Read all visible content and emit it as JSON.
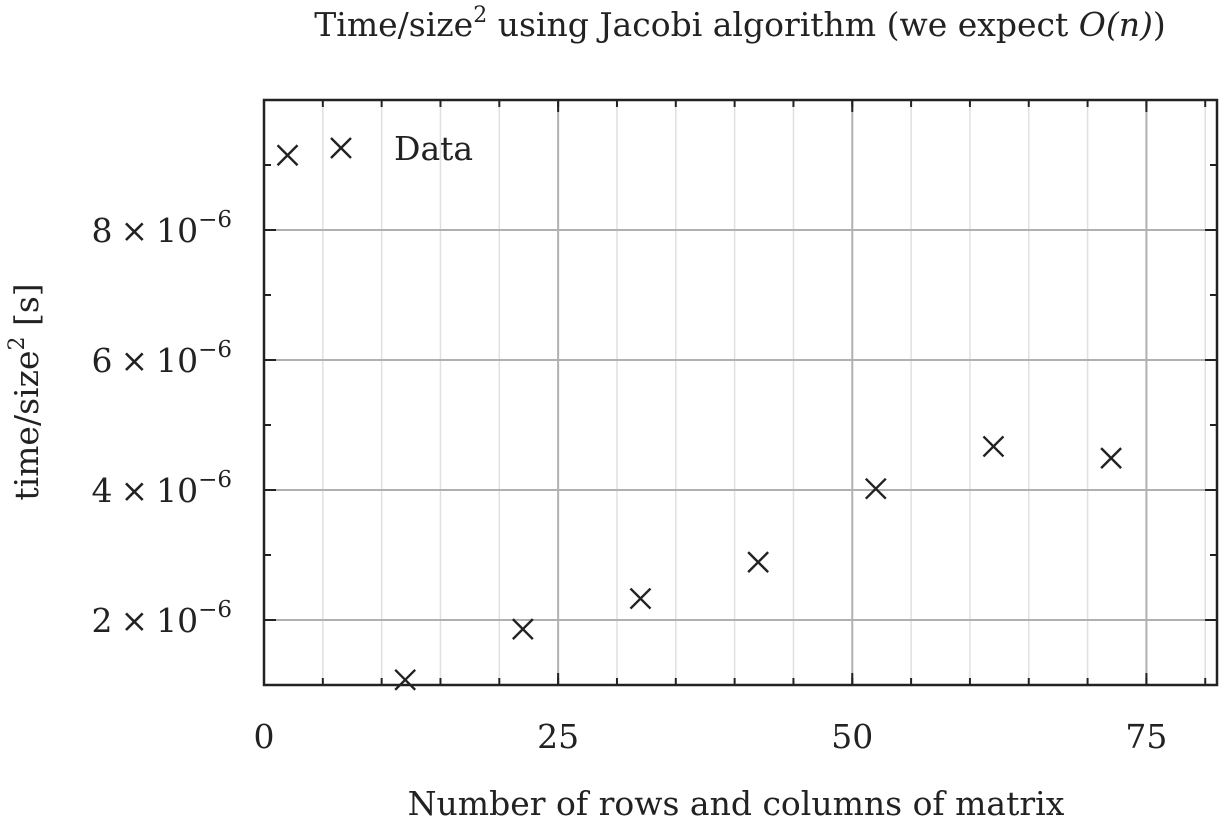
{
  "chart_data": {
    "type": "scatter",
    "title_main": "Time/size",
    "title_sup": "2",
    "title_rest": " using Jacobi algorithm (we expect ",
    "title_math": "O(n)",
    "title_end": ")",
    "xlabel": "Number of rows and columns of matrix",
    "ylabel_main": "time/size",
    "ylabel_sup": "2",
    "ylabel_rest": " [s]",
    "xlim": [
      0,
      81
    ],
    "ylim": [
      1e-06,
      1e-05
    ],
    "x_ticks": [
      {
        "value": 0,
        "label": "0"
      },
      {
        "value": 25,
        "label": "25"
      },
      {
        "value": 50,
        "label": "50"
      },
      {
        "value": 75,
        "label": "75"
      }
    ],
    "x_minor_step": 5,
    "y_ticks": [
      {
        "value": 2e-06,
        "mantissa": "2",
        "times": "×",
        "base": "10",
        "exp": "−6"
      },
      {
        "value": 4e-06,
        "mantissa": "4",
        "times": "×",
        "base": "10",
        "exp": "−6"
      },
      {
        "value": 6e-06,
        "mantissa": "6",
        "times": "×",
        "base": "10",
        "exp": "−6"
      },
      {
        "value": 8e-06,
        "mantissa": "8",
        "times": "×",
        "base": "10",
        "exp": "−6"
      }
    ],
    "y_minor_step": 1e-06,
    "grid": true,
    "legend": {
      "placement": "top-left",
      "entries": [
        "Data"
      ]
    },
    "series": [
      {
        "name": "Data",
        "marker": "x",
        "color": "#222222",
        "points": [
          {
            "x": 2,
            "y": 9.15e-06
          },
          {
            "x": 12,
            "y": 1.08e-06
          },
          {
            "x": 22,
            "y": 1.86e-06
          },
          {
            "x": 32,
            "y": 2.33e-06
          },
          {
            "x": 42,
            "y": 2.89e-06
          },
          {
            "x": 52,
            "y": 4.02e-06
          },
          {
            "x": 62,
            "y": 4.67e-06
          },
          {
            "x": 72,
            "y": 4.49e-06
          }
        ]
      }
    ]
  }
}
